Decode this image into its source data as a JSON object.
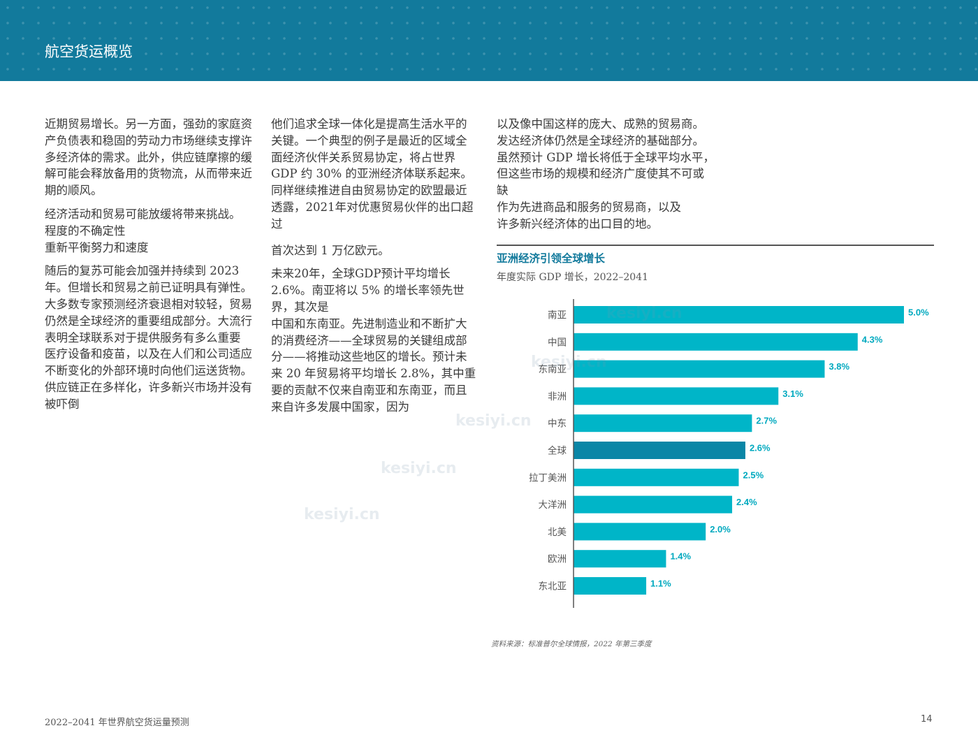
{
  "header": {
    "title": "航空货运概览"
  },
  "columns": {
    "col1": [
      "近期贸易增长。另一方面，强劲的家庭资产负债表和稳固的劳动力市场继续支撑许多经济体的需求。此外，供应链摩擦的缓解可能会释放备用的货物流，从而带来近期的顺风。",
      "经济活动和贸易可能放缓将带来挑战。",
      "程度的不确定性",
      "重新平衡努力和速度",
      "随后的复苏可能会加强并持续到 2023 年。但增长和贸易之前已证明具有弹性。大多数专家预测经济衰退相对较轻，贸易仍然是全球经济的重要组成部分。大流行表明全球联系对于提供服务有多么重要",
      "医疗设备和疫苗，以及在人们和公司适应不断变化的外部环境时向他们运送货物。",
      "供应链正在多样化，许多新兴市场并没有被吓倒"
    ],
    "col2": [
      "他们追求全球一体化是提高生活水平的关键。一个典型的例子是最近的区域全面经济伙伴关系贸易协定，将占世界 GDP 约 30% 的亚洲经济体联系起来。同样继续推进自由贸易协定的欧盟最近透露，2021年对优惠贸易伙伴的出口超过",
      "首次达到 1 万亿欧元。",
      "未来20年，全球GDP预计平均增长 2.6%。南亚将以 5% 的增长率领先世界，其次是",
      "中国和东南亚。先进制造业和不断扩大的消费经济——全球贸易的关键组成部分——将推动这些地区的增长。预计未来 20 年贸易将平均增长 2.8%，其中重要的贡献不仅来自南亚和东南亚，而且来自许多发展中国家，因为"
    ],
    "col3": [
      "以及像中国这样的庞大、成熟的贸易商。",
      "发达经济体仍然是全球经济的基础部分。",
      "虽然预计 GDP 增长将低于全球平均水平，",
      "但这些市场的规模和经济广度使其不可或",
      "缺",
      "作为先进商品和服务的贸易商，以及",
      "许多新兴经济体的出口目的地。"
    ]
  },
  "chart_data": {
    "type": "bar",
    "orientation": "horizontal",
    "title": "亚洲经济引领全球增长",
    "subtitle": "年度实际 GDP 增长，2022–2041",
    "categories": [
      "南亚",
      "中国",
      "东南亚",
      "非洲",
      "中东",
      "全球",
      "拉丁美洲",
      "大洋洲",
      "北美",
      "欧洲",
      "东北亚"
    ],
    "values": [
      5.0,
      4.3,
      3.8,
      3.1,
      2.7,
      2.6,
      2.5,
      2.4,
      2.0,
      1.4,
      1.1
    ],
    "value_labels": [
      "5.0%",
      "4.3%",
      "3.8%",
      "3.1%",
      "2.7%",
      "2.6%",
      "2.5%",
      "2.4%",
      "2.0%",
      "1.4%",
      "1.1%"
    ],
    "highlight": "全球",
    "xlim": [
      0,
      5
    ],
    "grid": false,
    "colors": {
      "bar": "#00b5c8",
      "highlight": "#0a86a6",
      "label": "#00a9bf",
      "axis": "#555555"
    },
    "source": "资料来源：标准普尔全球情报，2022 年第三季度"
  },
  "footer": {
    "left": "2022–2041 年世界航空货运量预测",
    "page": "14"
  },
  "watermark": {
    "text": "kesiyi.cn"
  }
}
